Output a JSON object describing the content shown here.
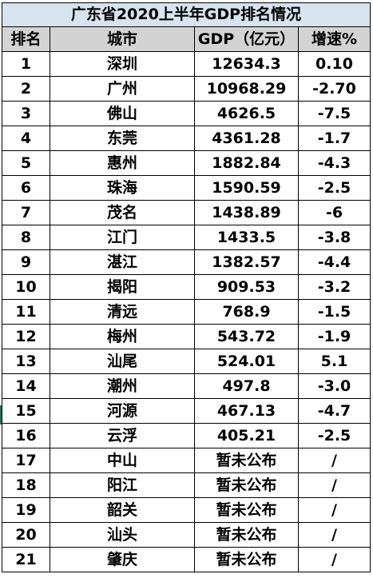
{
  "title": "广东省2020上半年GDP排名情况",
  "headers": {
    "rank": "排名",
    "city": "城市",
    "gdp": "GDP（亿元）",
    "growth": "增速%"
  },
  "rows": [
    {
      "rank": "1",
      "city": "深圳",
      "gdp": "12634.3",
      "growth": "0.10"
    },
    {
      "rank": "2",
      "city": "广州",
      "gdp": "10968.29",
      "growth": "-2.70"
    },
    {
      "rank": "3",
      "city": "佛山",
      "gdp": "4626.5",
      "growth": "-7.5"
    },
    {
      "rank": "4",
      "city": "东莞",
      "gdp": "4361.28",
      "growth": "-1.7"
    },
    {
      "rank": "5",
      "city": "惠州",
      "gdp": "1882.84",
      "growth": "-4.3"
    },
    {
      "rank": "6",
      "city": "珠海",
      "gdp": "1590.59",
      "growth": "-2.5"
    },
    {
      "rank": "7",
      "city": "茂名",
      "gdp": "1438.89",
      "growth": "-6"
    },
    {
      "rank": "8",
      "city": "江门",
      "gdp": "1433.5",
      "growth": "-3.8"
    },
    {
      "rank": "9",
      "city": "湛江",
      "gdp": "1382.57",
      "growth": "-4.4"
    },
    {
      "rank": "10",
      "city": "揭阳",
      "gdp": "909.53",
      "growth": "-3.2"
    },
    {
      "rank": "11",
      "city": "清远",
      "gdp": "768.9",
      "growth": "-1.5"
    },
    {
      "rank": "12",
      "city": "梅州",
      "gdp": "543.72",
      "growth": "-1.9"
    },
    {
      "rank": "13",
      "city": "汕尾",
      "gdp": "524.01",
      "growth": "5.1"
    },
    {
      "rank": "14",
      "city": "潮州",
      "gdp": "497.8",
      "growth": "-3.0"
    },
    {
      "rank": "15",
      "city": "河源",
      "gdp": "467.13",
      "growth": "-4.7"
    },
    {
      "rank": "16",
      "city": "云浮",
      "gdp": "405.21",
      "growth": "-2.5"
    },
    {
      "rank": "17",
      "city": "中山",
      "gdp": "暂未公布",
      "growth": "/"
    },
    {
      "rank": "18",
      "city": "阳江",
      "gdp": "暂未公布",
      "growth": "/"
    },
    {
      "rank": "19",
      "city": "韶关",
      "gdp": "暂未公布",
      "growth": "/"
    },
    {
      "rank": "20",
      "city": "汕头",
      "gdp": "暂未公布",
      "growth": "/"
    },
    {
      "rank": "21",
      "city": "肇庆",
      "gdp": "暂未公布",
      "growth": "/"
    }
  ],
  "colors": {
    "title_fill": "#d7e3ef",
    "header_fill": "#d3d3d3",
    "border": "#000000",
    "edge_mark": "#217346"
  }
}
